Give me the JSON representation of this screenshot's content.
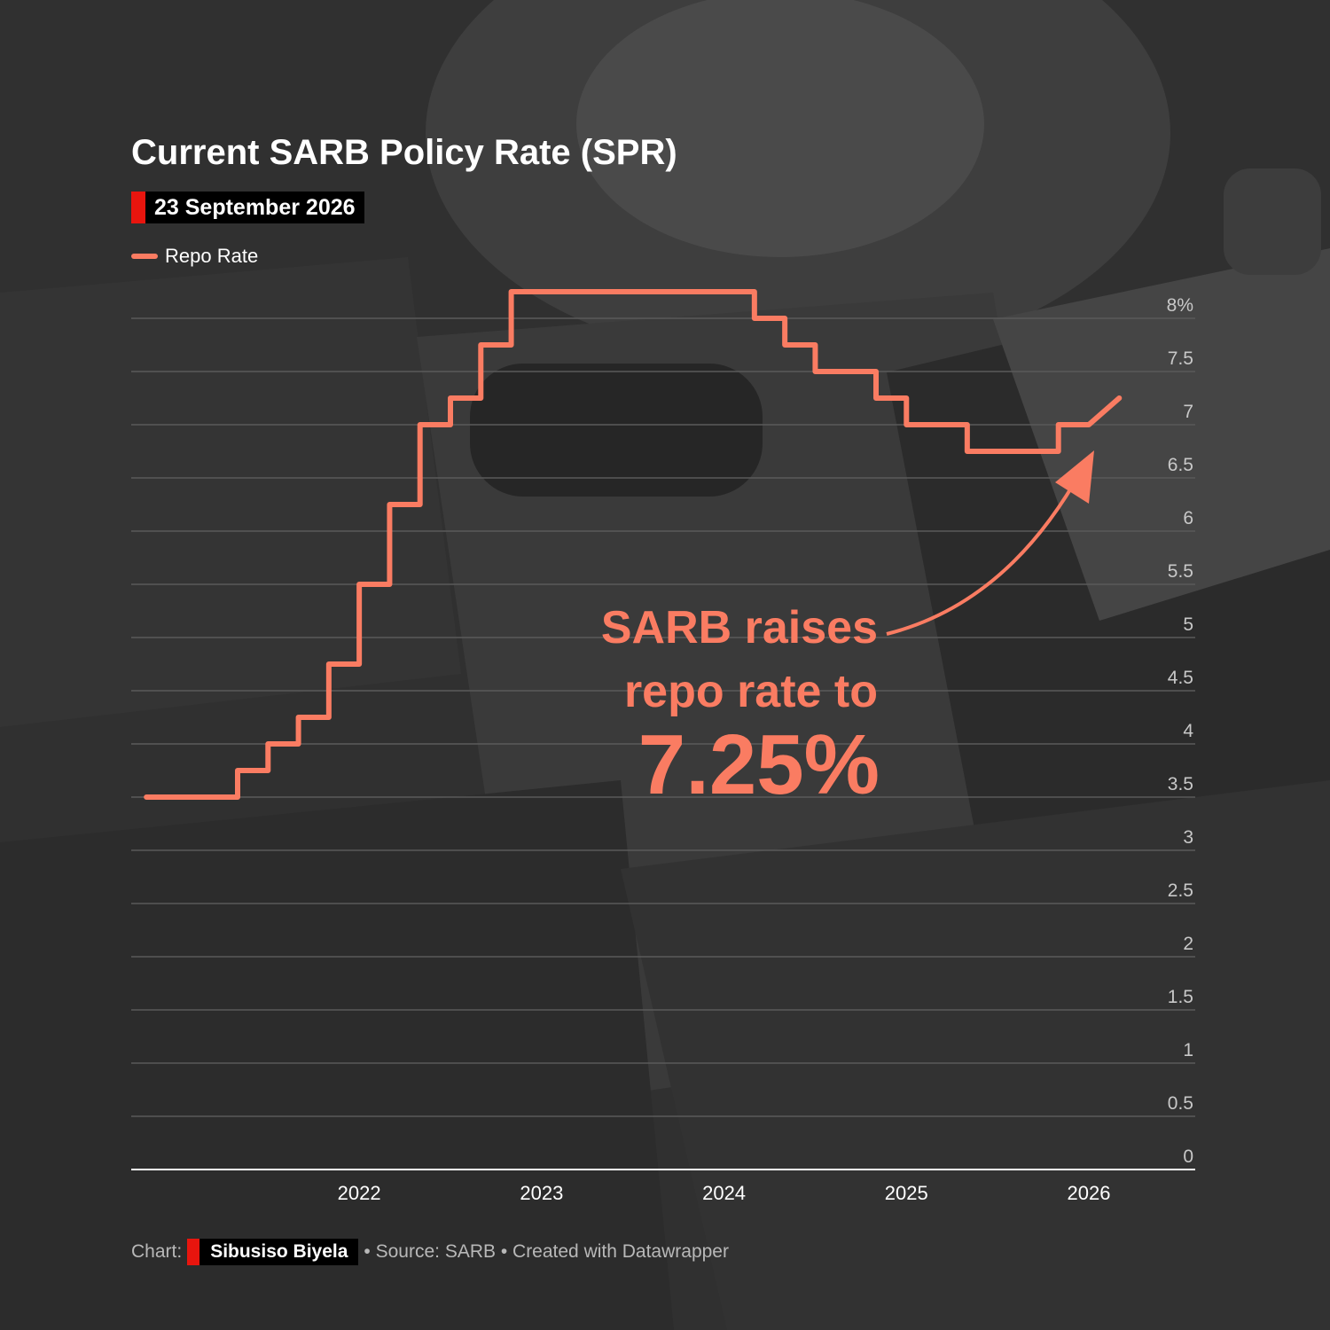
{
  "header": {
    "title": "Current SARB Policy Rate (SPR)",
    "date": "23 September 2026"
  },
  "legend": {
    "label": "Repo Rate",
    "color": "#fa7c62"
  },
  "annotation": {
    "line1": "SARB raises",
    "line2": "repo rate to",
    "value": "7.25%"
  },
  "footer": {
    "prefix": "Chart:",
    "author": "Sibusiso Biyela",
    "source": "• Source: SARB • Created with Datawrapper"
  },
  "chart_data": {
    "type": "line",
    "title": "Current SARB Policy Rate (SPR)",
    "xlabel": "",
    "ylabel": "",
    "ylim": [
      0,
      8
    ],
    "y_ticks": [
      {
        "v": 8,
        "label": "8%"
      },
      {
        "v": 7.5,
        "label": "7.5"
      },
      {
        "v": 7,
        "label": "7"
      },
      {
        "v": 6.5,
        "label": "6.5"
      },
      {
        "v": 6,
        "label": "6"
      },
      {
        "v": 5.5,
        "label": "5.5"
      },
      {
        "v": 5,
        "label": "5"
      },
      {
        "v": 4.5,
        "label": "4.5"
      },
      {
        "v": 4,
        "label": "4"
      },
      {
        "v": 3.5,
        "label": "3.5"
      },
      {
        "v": 3,
        "label": "3"
      },
      {
        "v": 2.5,
        "label": "2.5"
      },
      {
        "v": 2,
        "label": "2"
      },
      {
        "v": 1.5,
        "label": "1.5"
      },
      {
        "v": 1,
        "label": "1"
      },
      {
        "v": 0.5,
        "label": "0.5"
      },
      {
        "v": 0,
        "label": "0"
      }
    ],
    "x_ticks": [
      {
        "v": "2022",
        "label": "2022"
      },
      {
        "v": "2023",
        "label": "2023"
      },
      {
        "v": "2024",
        "label": "2024"
      },
      {
        "v": "2025",
        "label": "2025"
      },
      {
        "v": "2026",
        "label": "2026"
      }
    ],
    "xlim": [
      "2021-04",
      "2027-02"
    ],
    "grid": true,
    "legend_position": "top-left",
    "series": [
      {
        "name": "Repo Rate",
        "color": "#fa7c62",
        "step": true,
        "points": [
          {
            "x": "2021-05",
            "y": 3.5
          },
          {
            "x": "2021-11",
            "y": 3.75
          },
          {
            "x": "2022-01",
            "y": 4.0
          },
          {
            "x": "2022-03",
            "y": 4.25
          },
          {
            "x": "2022-05",
            "y": 4.75
          },
          {
            "x": "2022-07",
            "y": 5.5
          },
          {
            "x": "2022-09",
            "y": 6.25
          },
          {
            "x": "2022-11",
            "y": 7.0
          },
          {
            "x": "2023-01",
            "y": 7.25
          },
          {
            "x": "2023-03",
            "y": 7.75
          },
          {
            "x": "2023-05",
            "y": 8.25
          },
          {
            "x": "2024-09",
            "y": 8.0
          },
          {
            "x": "2024-11",
            "y": 7.75
          },
          {
            "x": "2025-01",
            "y": 7.5
          },
          {
            "x": "2025-05",
            "y": 7.25
          },
          {
            "x": "2025-07",
            "y": 7.0
          },
          {
            "x": "2025-11",
            "y": 6.75
          },
          {
            "x": "2026-05",
            "y": 7.0
          },
          {
            "x": "2026-07",
            "y": 7.0
          },
          {
            "x": "2026-09",
            "y": 7.25
          }
        ]
      }
    ]
  }
}
